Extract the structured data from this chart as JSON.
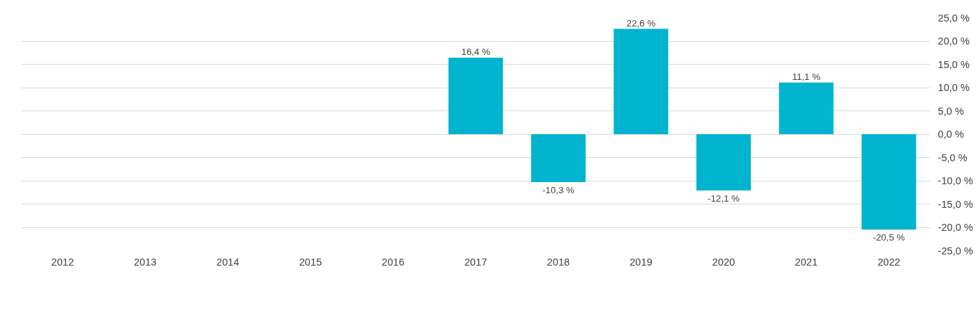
{
  "chart_data": {
    "type": "bar",
    "categories": [
      "2012",
      "2013",
      "2014",
      "2015",
      "2016",
      "2017",
      "2018",
      "2019",
      "2020",
      "2021",
      "2022"
    ],
    "series": [
      {
        "color": "#00b4cf",
        "values": [
          null,
          null,
          null,
          null,
          null,
          16.4,
          -10.3,
          22.6,
          -12.1,
          11.1,
          -20.5
        ],
        "value_labels": [
          null,
          null,
          null,
          null,
          null,
          "16,4 %",
          "-10,3 %",
          "22,6 %",
          "-12,1 %",
          "11,1 %",
          "-20,5 %"
        ]
      }
    ],
    "ylim": [
      -25,
      25
    ],
    "yticks": [
      {
        "value": -25,
        "label": "-25,0 %"
      },
      {
        "value": -20,
        "label": "-20,0 %"
      },
      {
        "value": -15,
        "label": "-15,0 %"
      },
      {
        "value": -10,
        "label": "-10,0 %"
      },
      {
        "value": -5,
        "label": "-5,0 %"
      },
      {
        "value": 0,
        "label": "0,0 %"
      },
      {
        "value": 5,
        "label": "5,0 %"
      },
      {
        "value": 10,
        "label": "10,0 %"
      },
      {
        "value": 15,
        "label": "15,0 %"
      },
      {
        "value": 20,
        "label": "20,0 %"
      },
      {
        "value": 25,
        "label": "25,0 %"
      }
    ],
    "grid": "y"
  }
}
